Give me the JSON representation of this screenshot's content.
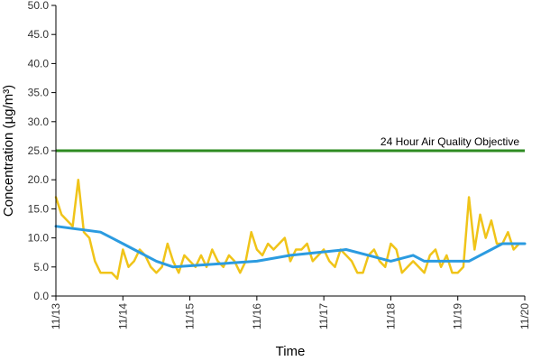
{
  "chart_data": {
    "type": "line",
    "title": "",
    "xlabel": "Time",
    "ylabel": "Concentration (µg/m³)",
    "ylim": [
      0,
      50
    ],
    "y_ticks": [
      "0.0",
      "5.0",
      "10.0",
      "15.0",
      "20.0",
      "25.0",
      "30.0",
      "35.0",
      "40.0",
      "45.0",
      "50.0"
    ],
    "x_start": "11/13",
    "x_end": "11/20",
    "x_ticks": [
      "11/13",
      "11/14",
      "11/15",
      "11/16",
      "11/17",
      "11/18",
      "11/19",
      "11/20"
    ],
    "grid": false,
    "legend": "none",
    "reference_line": {
      "label": "24 Hour Air Quality Objective",
      "value": 25,
      "color": "#2e8b22"
    },
    "series": [
      {
        "color": "#f0c419",
        "x": [
          "11/13 00:00",
          "11/13 02:00",
          "11/13 04:00",
          "11/13 06:00",
          "11/13 08:00",
          "11/13 10:00",
          "11/13 12:00",
          "11/13 14:00",
          "11/13 16:00",
          "11/13 18:00",
          "11/13 20:00",
          "11/13 22:00",
          "11/14 00:00",
          "11/14 02:00",
          "11/14 04:00",
          "11/14 06:00",
          "11/14 08:00",
          "11/14 10:00",
          "11/14 12:00",
          "11/14 14:00",
          "11/14 16:00",
          "11/14 18:00",
          "11/14 20:00",
          "11/14 22:00",
          "11/15 00:00",
          "11/15 02:00",
          "11/15 04:00",
          "11/15 06:00",
          "11/15 08:00",
          "11/15 10:00",
          "11/15 12:00",
          "11/15 14:00",
          "11/15 16:00",
          "11/15 18:00",
          "11/15 20:00",
          "11/15 22:00",
          "11/16 00:00",
          "11/16 02:00",
          "11/16 04:00",
          "11/16 06:00",
          "11/16 08:00",
          "11/16 10:00",
          "11/16 12:00",
          "11/16 14:00",
          "11/16 16:00",
          "11/16 18:00",
          "11/16 20:00",
          "11/16 22:00",
          "11/17 00:00",
          "11/17 02:00",
          "11/17 04:00",
          "11/17 06:00",
          "11/17 08:00",
          "11/17 10:00",
          "11/17 12:00",
          "11/17 14:00",
          "11/17 16:00",
          "11/17 18:00",
          "11/17 20:00",
          "11/17 22:00",
          "11/18 00:00",
          "11/18 02:00",
          "11/18 04:00",
          "11/18 06:00",
          "11/18 08:00",
          "11/18 10:00",
          "11/18 12:00",
          "11/18 14:00",
          "11/18 16:00",
          "11/18 18:00",
          "11/18 20:00",
          "11/18 22:00",
          "11/19 00:00",
          "11/19 02:00",
          "11/19 04:00",
          "11/19 06:00",
          "11/19 08:00",
          "11/19 10:00",
          "11/19 12:00",
          "11/19 14:00",
          "11/19 16:00",
          "11/19 18:00",
          "11/19 20:00",
          "11/19 22:00",
          "11/20 00:00"
        ],
        "values": [
          17,
          14,
          13,
          12,
          20,
          11,
          10,
          6,
          4,
          4,
          4,
          3,
          8,
          5,
          6,
          8,
          7,
          5,
          4,
          5,
          9,
          6,
          4,
          7,
          6,
          5,
          7,
          5,
          8,
          6,
          5,
          7,
          6,
          4,
          6,
          11,
          8,
          7,
          9,
          8,
          9,
          10,
          6,
          8,
          8,
          9,
          6,
          7,
          8,
          6,
          5,
          8,
          7,
          6,
          4,
          4,
          7,
          8,
          6,
          5,
          9,
          8,
          4,
          5,
          6,
          5,
          4,
          7,
          8,
          5,
          7,
          4,
          4,
          5,
          17,
          8,
          14,
          10,
          13,
          9,
          9,
          11,
          8,
          9,
          9
        ]
      },
      {
        "color": "#2b9be0",
        "x": [
          "11/13 00:00",
          "11/13 16:00",
          "11/13 20:00",
          "11/14 00:00",
          "11/14 04:00",
          "11/14 08:00",
          "11/14 12:00",
          "11/14 18:00",
          "11/16 00:00",
          "11/16 12:00",
          "11/17 08:00",
          "11/17 16:00",
          "11/18 00:00",
          "11/18 08:00",
          "11/18 12:00",
          "11/18 16:00",
          "11/18 20:00",
          "11/19 00:00",
          "11/19 04:00",
          "11/19 08:00",
          "11/19 12:00",
          "11/19 16:00",
          "11/20 00:00"
        ],
        "values": [
          12,
          11,
          10,
          9,
          8,
          7,
          6,
          5,
          6,
          7,
          8,
          7,
          6,
          7,
          6,
          6,
          6,
          6,
          6,
          7,
          8,
          9,
          9
        ]
      }
    ]
  }
}
